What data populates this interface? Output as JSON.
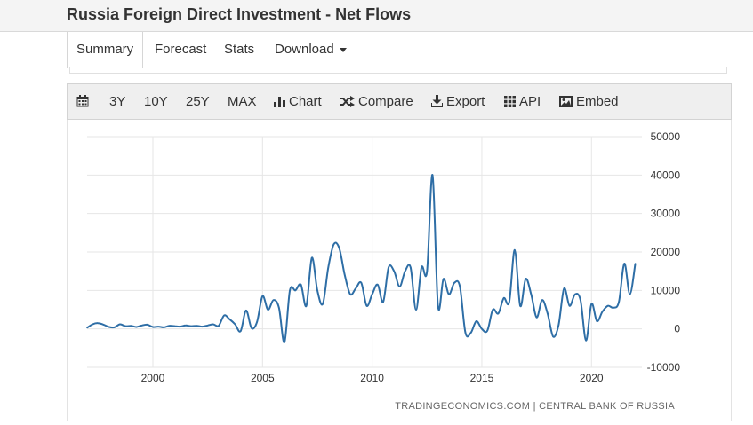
{
  "page": {
    "title": "Russia Foreign Direct Investment - Net Flows"
  },
  "tabs": [
    {
      "label": "Summary",
      "active": true
    },
    {
      "label": "Forecast",
      "active": false
    },
    {
      "label": "Stats",
      "active": false
    },
    {
      "label": "Download",
      "active": false,
      "dropdown": true
    }
  ],
  "toolbar": {
    "calendar_icon": "calendar-icon",
    "range_3y": "3Y",
    "range_10y": "10Y",
    "range_25y": "25Y",
    "range_max": "MAX",
    "chart_label": "Chart",
    "compare_label": "Compare",
    "export_label": "Export",
    "api_label": "API",
    "embed_label": "Embed"
  },
  "colors": {
    "line": "#2e6ea6",
    "grid": "#e6e6e6",
    "toolbar_bg": "#efefef"
  },
  "chart_data": {
    "type": "line",
    "title": "",
    "xlabel": "",
    "ylabel": "",
    "ylim": [
      -10000,
      50000
    ],
    "xlim": [
      1997,
      2022.3
    ],
    "y_ticks": [
      "50000",
      "40000",
      "30000",
      "20000",
      "10000",
      "0",
      "-10000"
    ],
    "x_ticks": [
      "2000",
      "2005",
      "2010",
      "2015",
      "2020"
    ],
    "grid": true,
    "credit": "TRADINGECONOMICS.COM | CENTRAL BANK OF RUSSIA",
    "series": [
      {
        "name": "",
        "x": [
          1997.0,
          1997.25,
          1997.5,
          1997.75,
          1998.0,
          1998.25,
          1998.5,
          1998.75,
          1999.0,
          1999.25,
          1999.5,
          1999.75,
          2000.0,
          2000.25,
          2000.5,
          2000.75,
          2001.0,
          2001.25,
          2001.5,
          2001.75,
          2002.0,
          2002.25,
          2002.5,
          2002.75,
          2003.0,
          2003.25,
          2003.5,
          2003.75,
          2004.0,
          2004.25,
          2004.5,
          2004.75,
          2005.0,
          2005.25,
          2005.5,
          2005.75,
          2006.0,
          2006.25,
          2006.5,
          2006.75,
          2007.0,
          2007.25,
          2007.5,
          2007.75,
          2008.0,
          2008.25,
          2008.5,
          2008.75,
          2009.0,
          2009.25,
          2009.5,
          2009.75,
          2010.0,
          2010.25,
          2010.5,
          2010.75,
          2011.0,
          2011.25,
          2011.5,
          2011.75,
          2012.0,
          2012.25,
          2012.5,
          2012.75,
          2013.0,
          2013.25,
          2013.5,
          2013.75,
          2014.0,
          2014.25,
          2014.5,
          2014.75,
          2015.0,
          2015.25,
          2015.5,
          2015.75,
          2016.0,
          2016.25,
          2016.5,
          2016.75,
          2017.0,
          2017.25,
          2017.5,
          2017.75,
          2018.0,
          2018.25,
          2018.5,
          2018.75,
          2019.0,
          2019.25,
          2019.5,
          2019.75,
          2020.0,
          2020.25,
          2020.5,
          2020.75,
          2021.0,
          2021.25,
          2021.5,
          2021.75,
          2022.0
        ],
        "values": [
          300,
          1200,
          1500,
          1100,
          500,
          400,
          1200,
          700,
          800,
          500,
          900,
          1100,
          500,
          600,
          400,
          800,
          700,
          600,
          900,
          700,
          800,
          600,
          900,
          1200,
          800,
          3500,
          2500,
          1200,
          -600,
          4800,
          200,
          1800,
          8500,
          5000,
          7500,
          5500,
          -3500,
          10000,
          10000,
          11500,
          6000,
          18500,
          10000,
          6500,
          16000,
          22000,
          21000,
          14000,
          9000,
          10500,
          12000,
          6000,
          9000,
          11500,
          7000,
          16000,
          15000,
          11000,
          15000,
          16000,
          5000,
          16000,
          15000,
          40000,
          6000,
          13000,
          9000,
          12000,
          11000,
          -1000,
          -1000,
          2000,
          0,
          -500,
          5000,
          4000,
          8000,
          7000,
          20500,
          6000,
          13000,
          9000,
          3000,
          7500,
          4000,
          -2000,
          1000,
          10500,
          6000,
          9000,
          7500,
          -3000,
          6500,
          2000,
          4500,
          6000,
          5500,
          7000,
          17000,
          9000,
          17000
        ]
      }
    ]
  }
}
